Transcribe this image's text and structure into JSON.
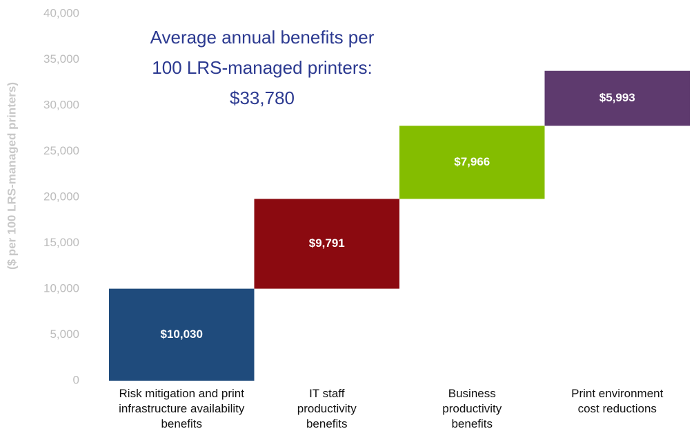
{
  "chart_data": {
    "type": "waterfall",
    "title": "Average annual benefits per 100 LRS-managed printers: $33,780",
    "y_label": "($ per 100 LRS-managed printers)",
    "categories": [
      "Risk mitigation and print infrastructure availability benefits",
      "IT staff productivity benefits",
      "Business productivity benefits",
      "Print environment cost reductions"
    ],
    "values": [
      10030,
      9791,
      7966,
      5993
    ],
    "value_labels": [
      "$10,030",
      "$9,791",
      "$7,966",
      "$5,993"
    ],
    "colors": [
      "#1f4b7c",
      "#8b0a10",
      "#84bd00",
      "#5e3a6e"
    ],
    "ylim": [
      0,
      40000
    ],
    "yticks": [
      0,
      {
        "value": 5000,
        "label": "5,000"
      },
      {
        "value": 10000,
        "label": "10,000"
      },
      {
        "value": 15000,
        "label": "15,000"
      },
      {
        "value": 20000,
        "label": "20,000"
      },
      {
        "value": 25000,
        "label": "25,000"
      },
      {
        "value": 30000,
        "label": "30,000"
      },
      {
        "value": 35000,
        "label": "35,000"
      },
      {
        "value": 40000,
        "label": "40,000"
      }
    ],
    "grid": false
  }
}
